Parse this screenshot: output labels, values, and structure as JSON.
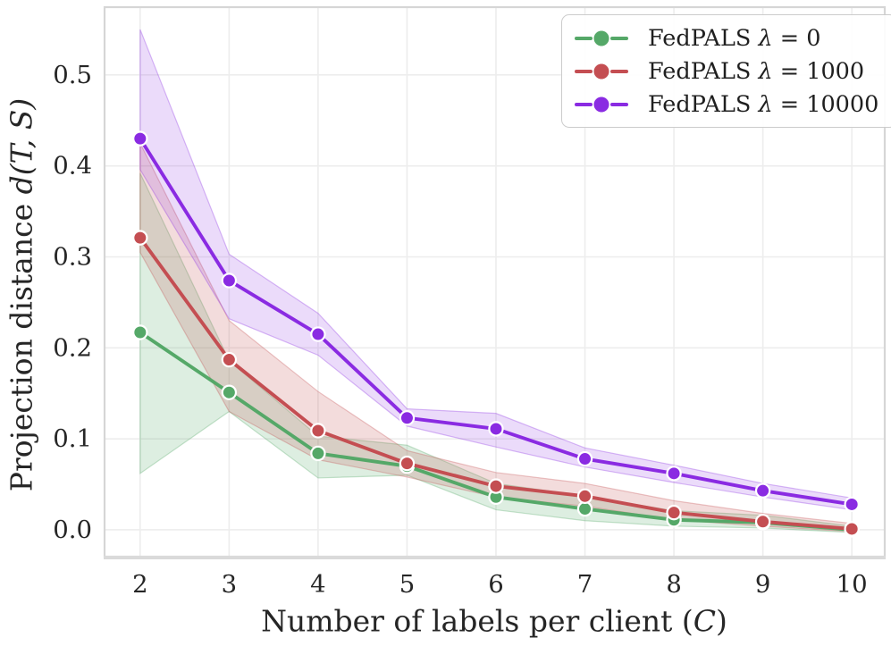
{
  "figure": {
    "background": "#ffffff",
    "text_color": "#262626",
    "grid_color": "#ededed",
    "spine_color": "#d6d6d6",
    "bottom_spine_color": "#dadada"
  },
  "chart_data": {
    "type": "line",
    "title": "",
    "xlabel": "Number of labels per client (C)",
    "ylabel": "Projection distance d(T, S)",
    "xlabel_parts": [
      {
        "t": "Number of labels per client (",
        "i": false
      },
      {
        "t": "C",
        "i": true
      },
      {
        "t": ")",
        "i": false
      }
    ],
    "ylabel_parts": [
      {
        "t": "Projection distance ",
        "i": false
      },
      {
        "t": "d(T, S)",
        "i": true
      }
    ],
    "x": [
      2,
      3,
      4,
      5,
      6,
      7,
      8,
      9,
      10
    ],
    "xtick_labels": [
      "2",
      "3",
      "4",
      "5",
      "6",
      "7",
      "8",
      "9",
      "10"
    ],
    "ytick_values": [
      0.0,
      0.1,
      0.2,
      0.3,
      0.4,
      0.5
    ],
    "ytick_labels": [
      "0.0",
      "0.1",
      "0.2",
      "0.3",
      "0.4",
      "0.5"
    ],
    "xlim": [
      1.6,
      10.37
    ],
    "ylim": [
      -0.0295,
      0.5745
    ],
    "grid": true,
    "legend_position": "upper-right",
    "series": [
      {
        "name": "FedPALS λ = 0",
        "label_parts": [
          {
            "t": "FedPALS ",
            "i": false
          },
          {
            "t": "λ",
            "i": true
          },
          {
            "t": " = 0",
            "i": false
          }
        ],
        "color": "#55a868",
        "band_alpha": 0.2,
        "values": [
          0.217,
          0.151,
          0.084,
          0.07,
          0.036,
          0.023,
          0.011,
          0.008,
          0.0
        ],
        "band_low": [
          0.062,
          0.13,
          0.057,
          0.06,
          0.022,
          0.01,
          0.004,
          0.002,
          -0.003
        ],
        "band_high": [
          0.392,
          0.186,
          0.103,
          0.093,
          0.051,
          0.037,
          0.021,
          0.016,
          0.004
        ]
      },
      {
        "name": "FedPALS λ = 1000",
        "label_parts": [
          {
            "t": "FedPALS ",
            "i": false
          },
          {
            "t": "λ",
            "i": true
          },
          {
            "t": " = 1000",
            "i": false
          }
        ],
        "color": "#c44e52",
        "band_alpha": 0.2,
        "values": [
          0.321,
          0.187,
          0.109,
          0.073,
          0.048,
          0.037,
          0.019,
          0.009,
          0.001
        ],
        "band_low": [
          0.305,
          0.13,
          0.077,
          0.058,
          0.036,
          0.026,
          0.011,
          0.004,
          -0.002
        ],
        "band_high": [
          0.425,
          0.23,
          0.152,
          0.087,
          0.063,
          0.051,
          0.032,
          0.018,
          0.007
        ]
      },
      {
        "name": "FedPALS λ = 10000",
        "label_parts": [
          {
            "t": "FedPALS ",
            "i": false
          },
          {
            "t": "λ",
            "i": true
          },
          {
            "t": " = 10000",
            "i": false
          }
        ],
        "color": "#8a2be2",
        "band_alpha": 0.17,
        "values": [
          0.43,
          0.274,
          0.215,
          0.123,
          0.111,
          0.078,
          0.062,
          0.043,
          0.028
        ],
        "band_low": [
          0.396,
          0.232,
          0.192,
          0.114,
          0.091,
          0.069,
          0.052,
          0.036,
          0.022
        ],
        "band_high": [
          0.55,
          0.303,
          0.238,
          0.133,
          0.128,
          0.09,
          0.071,
          0.051,
          0.035
        ]
      }
    ]
  }
}
